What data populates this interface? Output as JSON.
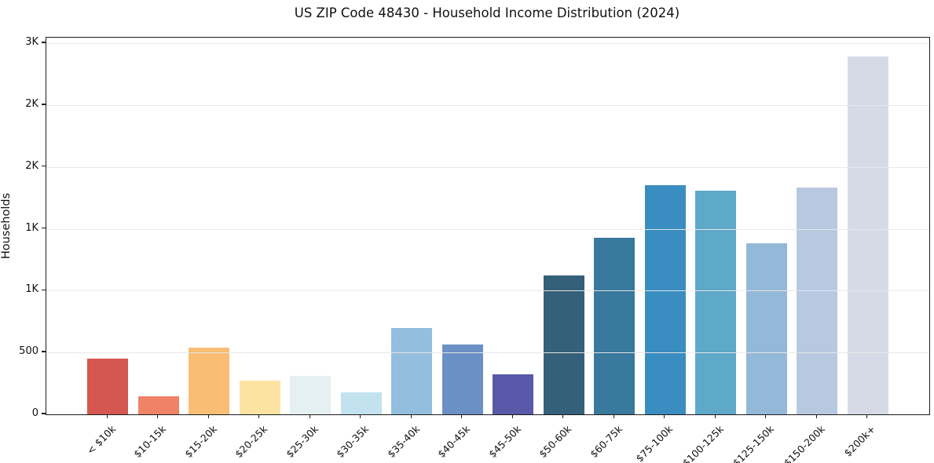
{
  "window": {
    "title": "US ZIP Code 48430 - Household Income Distribution (2024)"
  },
  "chart_data": {
    "type": "bar",
    "title": "US ZIP Code 48430 - Household Income Distribution (2024)",
    "xlabel": "",
    "ylabel": "Households",
    "ylim": [
      0,
      3045
    ],
    "grid": "horizontal-only",
    "legend": "none",
    "categories": [
      "< $10k",
      "$10-15k",
      "$15-20k",
      "$20-25k",
      "$25-30k",
      "$30-35k",
      "$35-40k",
      "$40-45k",
      "$45-50k",
      "$50-60k",
      "$60-75k",
      "$75-100k",
      "$100-125k",
      "$125-150k",
      "$150-200k",
      "$200k+"
    ],
    "values": [
      450,
      148,
      537,
      271,
      308,
      178,
      695,
      562,
      322,
      1122,
      1428,
      1853,
      1805,
      1385,
      1835,
      2895
    ],
    "bar_colors": [
      "#d6574f",
      "#f08266",
      "#fabd74",
      "#fde3a1",
      "#e4f0f2",
      "#c1e2ee",
      "#93bedd",
      "#6b90c6",
      "#5a58a8",
      "#35607a",
      "#38799d",
      "#3a8dc0",
      "#5ea8c8",
      "#93b8d8",
      "#b8c8e1",
      "#d6d9e6"
    ],
    "y_ticks": [
      {
        "value": 0,
        "label": "0"
      },
      {
        "value": 500,
        "label": "500"
      },
      {
        "value": 1000,
        "label": "1K"
      },
      {
        "value": 1500,
        "label": "1K"
      },
      {
        "value": 2000,
        "label": "2K"
      },
      {
        "value": 2500,
        "label": "2K"
      },
      {
        "value": 3000,
        "label": "3K"
      }
    ]
  },
  "colors": {
    "background": "#ffffff",
    "spine": "#1c1c1c",
    "grid": "#e8e8e8",
    "text": "#111111"
  }
}
